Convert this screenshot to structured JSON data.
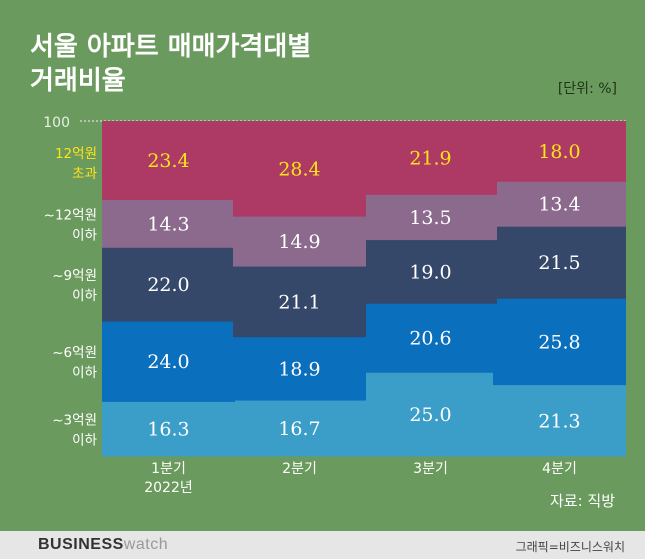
{
  "title_lines": [
    "서울 아파트 매매가격대별",
    "거래비율"
  ],
  "unit": "[단위: %]",
  "source": "자료: 직방",
  "footer": {
    "logo_bold": "BUSINESS",
    "logo_light": "watch",
    "credit": "그래픽=비즈니스워치"
  },
  "colors": {
    "over12": "#ad3a64",
    "upto12": "#8b6a8d",
    "upto9": "#35486a",
    "upto6": "#0a6fbd",
    "upto3": "#3a9ec8",
    "highlight": "#ffe319",
    "normal": "#ffffff"
  },
  "chart_data": {
    "type": "bar",
    "stacked": true,
    "ylim": [
      0,
      100
    ],
    "y_tick_label": "100",
    "categories": [
      [
        "1분기",
        "2022년"
      ],
      [
        "2분기"
      ],
      [
        "3분기"
      ],
      [
        "4분기"
      ]
    ],
    "series": [
      {
        "name": [
          "~3억원",
          "이하"
        ],
        "values": [
          16.3,
          16.7,
          25.0,
          21.3
        ]
      },
      {
        "name": [
          "~6억원",
          "이하"
        ],
        "values": [
          24.0,
          18.9,
          20.6,
          25.8
        ]
      },
      {
        "name": [
          "~9억원",
          "이하"
        ],
        "values": [
          22.0,
          21.1,
          19.0,
          21.5
        ]
      },
      {
        "name": [
          "~12억원",
          "이하"
        ],
        "values": [
          14.3,
          14.9,
          13.5,
          13.4
        ]
      },
      {
        "name": [
          "12억원",
          "초과"
        ],
        "values": [
          23.4,
          28.4,
          21.9,
          18.0
        ]
      }
    ],
    "connector_lines": "dotted",
    "legend": "left"
  }
}
